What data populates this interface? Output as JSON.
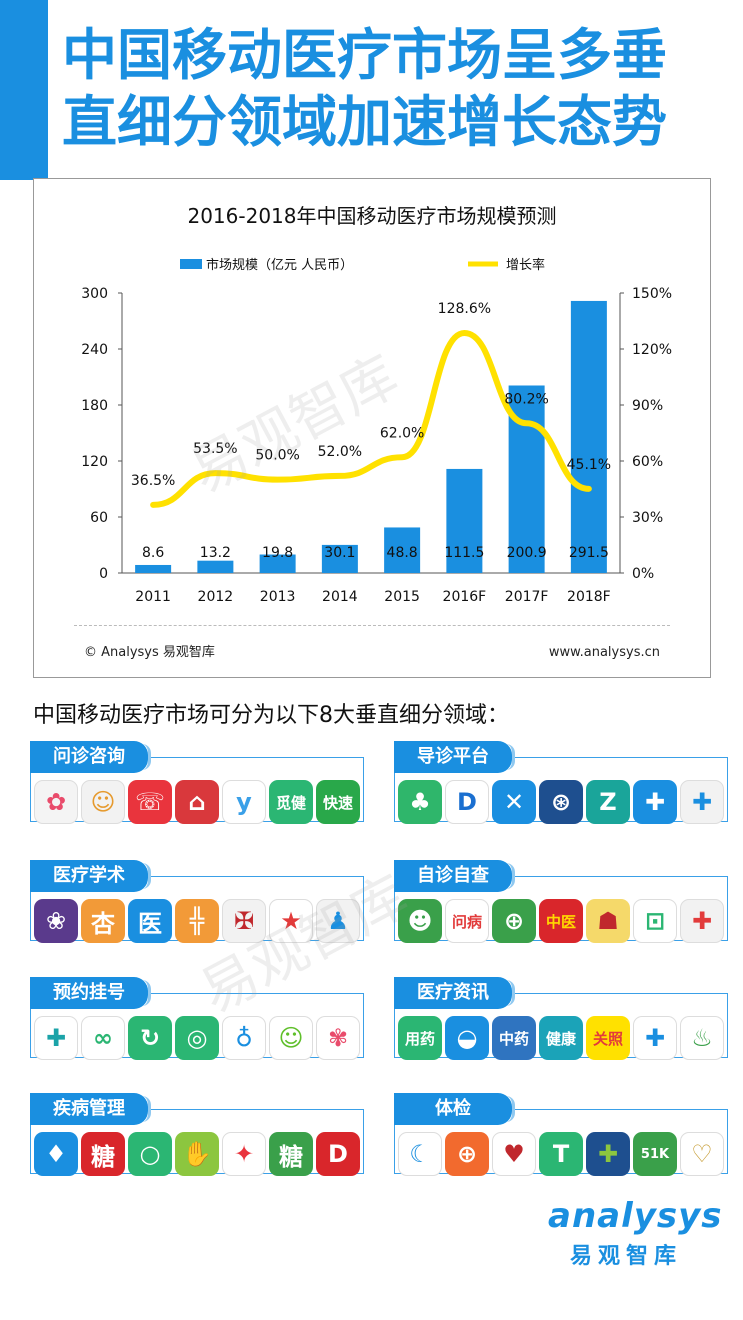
{
  "page": {
    "title_line1": "中国移动医疗市场呈多垂",
    "title_line2": "直细分领域加速增长态势",
    "subtitle": "中国移动医疗市场可分为以下8大垂直细分领域：",
    "watermark": "易观智库"
  },
  "chart_data": {
    "type": "bar",
    "title": "2016-2018年中国移动医疗市场规模预测",
    "categories": [
      "2011",
      "2012",
      "2013",
      "2014",
      "2015",
      "2016F",
      "2017F",
      "2018F"
    ],
    "series": [
      {
        "name": "市场规模（亿元 人民币）",
        "type": "bar",
        "axis": "left",
        "color": "#1a8fe0",
        "values": [
          8.6,
          13.2,
          19.8,
          30.1,
          48.8,
          111.5,
          200.9,
          291.5
        ],
        "labels": [
          "8.6",
          "13.2",
          "19.8",
          "30.1",
          "48.8",
          "111.5",
          "200.9",
          "291.5"
        ]
      },
      {
        "name": "增长率",
        "type": "line",
        "axis": "right",
        "color": "#ffe100",
        "values": [
          36.5,
          53.5,
          50.0,
          52.0,
          62.0,
          128.6,
          80.2,
          45.1
        ],
        "labels": [
          "36.5%",
          "53.5%",
          "50.0%",
          "52.0%",
          "62.0%",
          "128.6%",
          "80.2%",
          "45.1%"
        ]
      }
    ],
    "y_left": {
      "min": 0,
      "max": 300,
      "ticks": [
        0,
        60,
        120,
        180,
        240,
        300
      ],
      "tick_labels": [
        "0",
        "60",
        "120",
        "180",
        "240",
        "300"
      ]
    },
    "y_right": {
      "min": 0,
      "max": 150,
      "ticks": [
        0,
        30,
        60,
        90,
        120,
        150
      ],
      "tick_labels": [
        "0%",
        "30%",
        "60%",
        "90%",
        "120%",
        "150%"
      ]
    },
    "legend": "top",
    "grid": false,
    "source": "© Analysys 易观智库",
    "url": "www.analysys.cn"
  },
  "categories": [
    {
      "label": "问诊咨询",
      "icons": [
        {
          "name": "flower-app-icon",
          "glyph": "✿",
          "bg": "#f4f4f4",
          "fg": "#e94b6b"
        },
        {
          "name": "doctor-cartoon-app-icon",
          "glyph": "☺",
          "bg": "#f2f2f2",
          "fg": "#e69a2e"
        },
        {
          "name": "chat-bubble-app-icon",
          "glyph": "☏",
          "bg": "#e9343d",
          "fg": "#ffffff"
        },
        {
          "name": "house-app-icon",
          "glyph": "⌂",
          "bg": "#d9383c",
          "fg": "#ffffff"
        },
        {
          "name": "y-letter-app-icon",
          "glyph": "y",
          "bg": "#ffffff",
          "fg": "#3aa0e8"
        },
        {
          "name": "mijian-app-icon",
          "glyph": "觅健",
          "bg": "#2bb673",
          "fg": "#ffffff"
        },
        {
          "name": "kuaisu-wenyisheng-app-icon",
          "glyph": "快速",
          "bg": "#29a84a",
          "fg": "#ffffff"
        }
      ]
    },
    {
      "label": "导诊平台",
      "icons": [
        {
          "name": "sprout-app-icon",
          "glyph": "♣",
          "bg": "#2fb66b",
          "fg": "#ffffff"
        },
        {
          "name": "dp-letter-app-icon",
          "glyph": "D",
          "bg": "#ffffff",
          "fg": "#1a6fd0"
        },
        {
          "name": "butterfly-app-icon",
          "glyph": "✕",
          "bg": "#1a8fe0",
          "fg": "#ffffff"
        },
        {
          "name": "hospital-seal-app-icon",
          "glyph": "⊛",
          "bg": "#1e4f8f",
          "fg": "#ffffff"
        },
        {
          "name": "z-letter-app-icon",
          "glyph": "Z",
          "bg": "#1aa59a",
          "fg": "#ffffff"
        },
        {
          "name": "medical-cross-app-icon",
          "glyph": "✚",
          "bg": "#1a8fe0",
          "fg": "#ffffff"
        },
        {
          "name": "blue-cross-app-icon",
          "glyph": "✚",
          "bg": "#f2f2f2",
          "fg": "#1a8fe0"
        }
      ]
    },
    {
      "label": "医疗学术",
      "icons": [
        {
          "name": "purple-flower-app-icon",
          "glyph": "❀",
          "bg": "#5a3a8c",
          "fg": "#ffffff"
        },
        {
          "name": "xingshulin-app-icon",
          "glyph": "杏",
          "bg": "#f29a38",
          "fg": "#ffffff"
        },
        {
          "name": "yi-character-app-icon",
          "glyph": "医",
          "bg": "#1a8fe0",
          "fg": "#ffffff"
        },
        {
          "name": "plus-orange-app-icon",
          "glyph": "╬",
          "bg": "#f29a38",
          "fg": "#ffffff"
        },
        {
          "name": "emblem-app-icon",
          "glyph": "✠",
          "bg": "#f2f2f2",
          "fg": "#c0282d"
        },
        {
          "name": "star-pharmacist-app-icon",
          "glyph": "★",
          "bg": "#ffffff",
          "fg": "#e23b3b"
        },
        {
          "name": "people-app-icon",
          "glyph": "♟",
          "bg": "#f2f2f2",
          "fg": "#1a8fe0"
        }
      ]
    },
    {
      "label": "自诊自查",
      "icons": [
        {
          "name": "doctor-portrait-app-icon",
          "glyph": "☻",
          "bg": "#3aa04a",
          "fg": "#ffffff"
        },
        {
          "name": "wenbing-app-icon",
          "glyph": "问病",
          "bg": "#ffffff",
          "fg": "#e23b3b"
        },
        {
          "name": "pianfang-app-icon",
          "glyph": "⊕",
          "bg": "#3aa04a",
          "fg": "#ffffff"
        },
        {
          "name": "zhongyi-chabing-app-icon",
          "glyph": "中医",
          "bg": "#d9262b",
          "fg": "#ffd800"
        },
        {
          "name": "cartoon-clinic-app-icon",
          "glyph": "☗",
          "bg": "#f5d96a",
          "fg": "#c0282d"
        },
        {
          "name": "medical-kit-app-icon",
          "glyph": "⊡",
          "bg": "#ffffff",
          "fg": "#2bb673"
        },
        {
          "name": "green-cross-app-icon",
          "glyph": "✚",
          "bg": "#f2f2f2",
          "fg": "#e23b3b"
        }
      ]
    },
    {
      "label": "预约挂号",
      "icons": [
        {
          "name": "cross-teal-app-icon",
          "glyph": "✚",
          "bg": "#ffffff",
          "fg": "#1ba3a8"
        },
        {
          "name": "infinity-app-icon",
          "glyph": "∞",
          "bg": "#ffffff",
          "fg": "#2bb673"
        },
        {
          "name": "circle-arrows-app-icon",
          "glyph": "↻",
          "bg": "#2bb673",
          "fg": "#ffffff"
        },
        {
          "name": "green-ring-app-icon",
          "glyph": "◎",
          "bg": "#2bb673",
          "fg": "#ffffff"
        },
        {
          "name": "stethoscope-app-icon",
          "glyph": "♁",
          "bg": "#ffffff",
          "fg": "#1a8fe0"
        },
        {
          "name": "apple-face-app-icon",
          "glyph": "☺",
          "bg": "#ffffff",
          "fg": "#5fbf2a"
        },
        {
          "name": "colorful-petals-app-icon",
          "glyph": "✾",
          "bg": "#ffffff",
          "fg": "#e94b6b"
        }
      ]
    },
    {
      "label": "医疗资讯",
      "icons": [
        {
          "name": "yongyao-anquan-app-icon",
          "glyph": "用药",
          "bg": "#2bb673",
          "fg": "#ffffff"
        },
        {
          "name": "pill-app-icon",
          "glyph": "◒",
          "bg": "#1a8fe0",
          "fg": "#ffffff"
        },
        {
          "name": "zhongyao-zhinan-app-icon",
          "glyph": "中药",
          "bg": "#2f74c0",
          "fg": "#ffffff"
        },
        {
          "name": "jiankang-39-app-icon",
          "glyph": "健康",
          "bg": "#1ba3b8",
          "fg": "#ffffff"
        },
        {
          "name": "guanzhao-app-icon",
          "glyph": "关照",
          "bg": "#ffe100",
          "fg": "#e23b3b"
        },
        {
          "name": "diamond-cross-app-icon",
          "glyph": "✚",
          "bg": "#ffffff",
          "fg": "#1a8fe0"
        },
        {
          "name": "mortar-app-icon",
          "glyph": "♨",
          "bg": "#ffffff",
          "fg": "#3aa04a"
        }
      ]
    },
    {
      "label": "疾病管理",
      "icons": [
        {
          "name": "drop-app-icon",
          "glyph": "♦",
          "bg": "#1a8fe0",
          "fg": "#ffffff"
        },
        {
          "name": "tang-red-app-icon",
          "glyph": "糖",
          "bg": "#d9262b",
          "fg": "#ffffff"
        },
        {
          "name": "green-circle-app-icon",
          "glyph": "○",
          "bg": "#2bb673",
          "fg": "#ffffff"
        },
        {
          "name": "hand-plus-app-icon",
          "glyph": "✋",
          "bg": "#8cc63f",
          "fg": "#ffffff"
        },
        {
          "name": "colorful-leaves-app-icon",
          "glyph": "✦",
          "bg": "#ffffff",
          "fg": "#e9343d"
        },
        {
          "name": "tang-green-app-icon",
          "glyph": "糖",
          "bg": "#3aa04a",
          "fg": "#ffffff"
        },
        {
          "name": "d-nurse-app-icon",
          "glyph": "D",
          "bg": "#d9262b",
          "fg": "#ffffff"
        }
      ]
    },
    {
      "label": "体检",
      "icons": [
        {
          "name": "blue-swirl-app-icon",
          "glyph": "☾",
          "bg": "#ffffff",
          "fg": "#1a8fe0"
        },
        {
          "name": "orange-plus-app-icon",
          "glyph": "⊕",
          "bg": "#f26a2e",
          "fg": "#ffffff"
        },
        {
          "name": "health-100-app-icon",
          "glyph": "♥",
          "bg": "#ffffff",
          "fg": "#c0282d"
        },
        {
          "name": "green-t-app-icon",
          "glyph": "T",
          "bg": "#2bb673",
          "fg": "#ffffff"
        },
        {
          "name": "flower-cross-app-icon",
          "glyph": "✚",
          "bg": "#1e4f8f",
          "fg": "#8cc63f"
        },
        {
          "name": "51k-app-icon",
          "glyph": "51K",
          "bg": "#3aa04a",
          "fg": "#ffffff"
        },
        {
          "name": "gold-heart-app-icon",
          "glyph": "♡",
          "bg": "#ffffff",
          "fg": "#c59a2e"
        }
      ]
    }
  ],
  "logo": {
    "word": "analysys",
    "cn": "易观智库"
  }
}
